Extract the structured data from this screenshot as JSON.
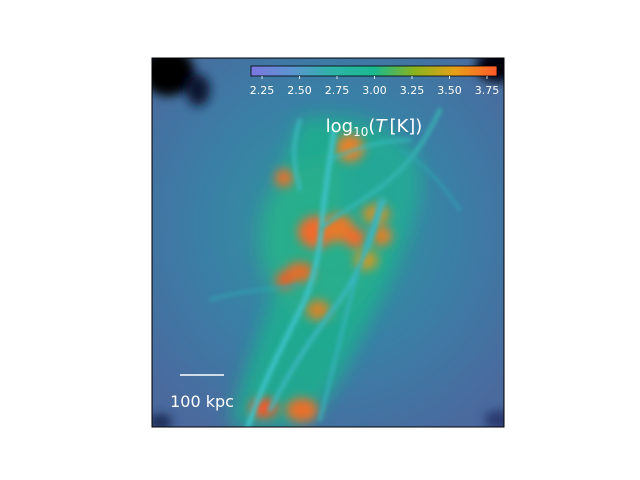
{
  "colorbar": {
    "label_base": "log",
    "label_sub": "10",
    "label_open": "(",
    "label_var": "T",
    "label_unit": "[K]",
    "label_close": ")",
    "ticks": [
      "2.25",
      "2.50",
      "2.75",
      "3.00",
      "3.25",
      "3.50",
      "3.75"
    ],
    "colors": [
      "#7b78e0",
      "#5a95d0",
      "#2fb3a8",
      "#1ab990",
      "#8db31c",
      "#e6a018",
      "#ff5a2a"
    ]
  },
  "scale_bar": {
    "label": "100 kpc"
  },
  "colors": {
    "background": "#3f7fa0",
    "filament": "#2ab89a",
    "filament_bright": "#3ec2c8",
    "hot": "#f07a2a",
    "hottest": "#ff4a2a",
    "corner": "#000000"
  }
}
